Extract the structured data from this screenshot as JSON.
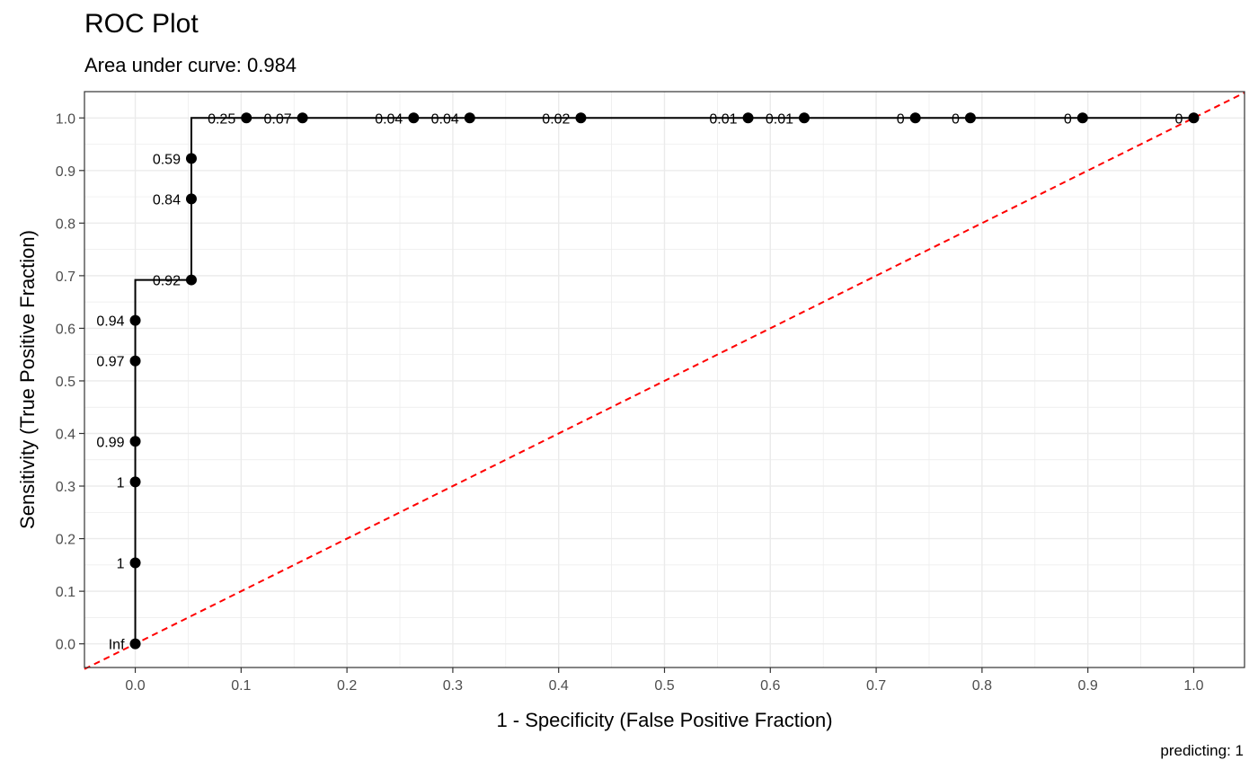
{
  "chart_data": {
    "type": "line",
    "title": "ROC Plot",
    "subtitle": "Area under curve: 0.984",
    "caption": "predicting: 1",
    "xlabel": "1 - Specificity (False Positive Fraction)",
    "ylabel": "Sensitivity (True Positive Fraction)",
    "xlim": [
      -0.048,
      1.048
    ],
    "ylim": [
      -0.045,
      1.05
    ],
    "xticks": [
      "0.0",
      "0.1",
      "0.2",
      "0.3",
      "0.4",
      "0.5",
      "0.6",
      "0.7",
      "0.8",
      "0.9",
      "1.0"
    ],
    "yticks": [
      "0.0",
      "0.1",
      "0.2",
      "0.3",
      "0.4",
      "0.5",
      "0.6",
      "0.7",
      "0.8",
      "0.9",
      "1.0"
    ],
    "grid": true,
    "reference_line": {
      "from": [
        0,
        0
      ],
      "to": [
        1,
        1
      ],
      "color": "#ff0000",
      "style": "dashed"
    },
    "curve_color": "#000000",
    "points": [
      {
        "x": 0.0,
        "y": 0.0,
        "label": "Inf"
      },
      {
        "x": 0.0,
        "y": 0.154,
        "label": "1"
      },
      {
        "x": 0.0,
        "y": 0.308,
        "label": "1"
      },
      {
        "x": 0.0,
        "y": 0.385,
        "label": "0.99"
      },
      {
        "x": 0.0,
        "y": 0.538,
        "label": "0.97"
      },
      {
        "x": 0.0,
        "y": 0.615,
        "label": "0.94"
      },
      {
        "x": 0.053,
        "y": 0.692,
        "label": "0.92"
      },
      {
        "x": 0.053,
        "y": 0.846,
        "label": "0.84"
      },
      {
        "x": 0.053,
        "y": 0.923,
        "label": "0.59"
      },
      {
        "x": 0.105,
        "y": 1.0,
        "label": "0.25"
      },
      {
        "x": 0.158,
        "y": 1.0,
        "label": "0.07"
      },
      {
        "x": 0.263,
        "y": 1.0,
        "label": "0.04"
      },
      {
        "x": 0.316,
        "y": 1.0,
        "label": "0.04"
      },
      {
        "x": 0.421,
        "y": 1.0,
        "label": "0.02"
      },
      {
        "x": 0.579,
        "y": 1.0,
        "label": "0.01"
      },
      {
        "x": 0.632,
        "y": 1.0,
        "label": "0.01"
      },
      {
        "x": 0.737,
        "y": 1.0,
        "label": "0"
      },
      {
        "x": 0.789,
        "y": 1.0,
        "label": "0"
      },
      {
        "x": 0.895,
        "y": 1.0,
        "label": "0"
      },
      {
        "x": 1.0,
        "y": 1.0,
        "label": "0"
      }
    ],
    "step_path": [
      [
        0,
        0
      ],
      [
        0,
        0.692
      ],
      [
        0.053,
        0.692
      ],
      [
        0.053,
        1.0
      ],
      [
        1.0,
        1.0
      ]
    ]
  }
}
